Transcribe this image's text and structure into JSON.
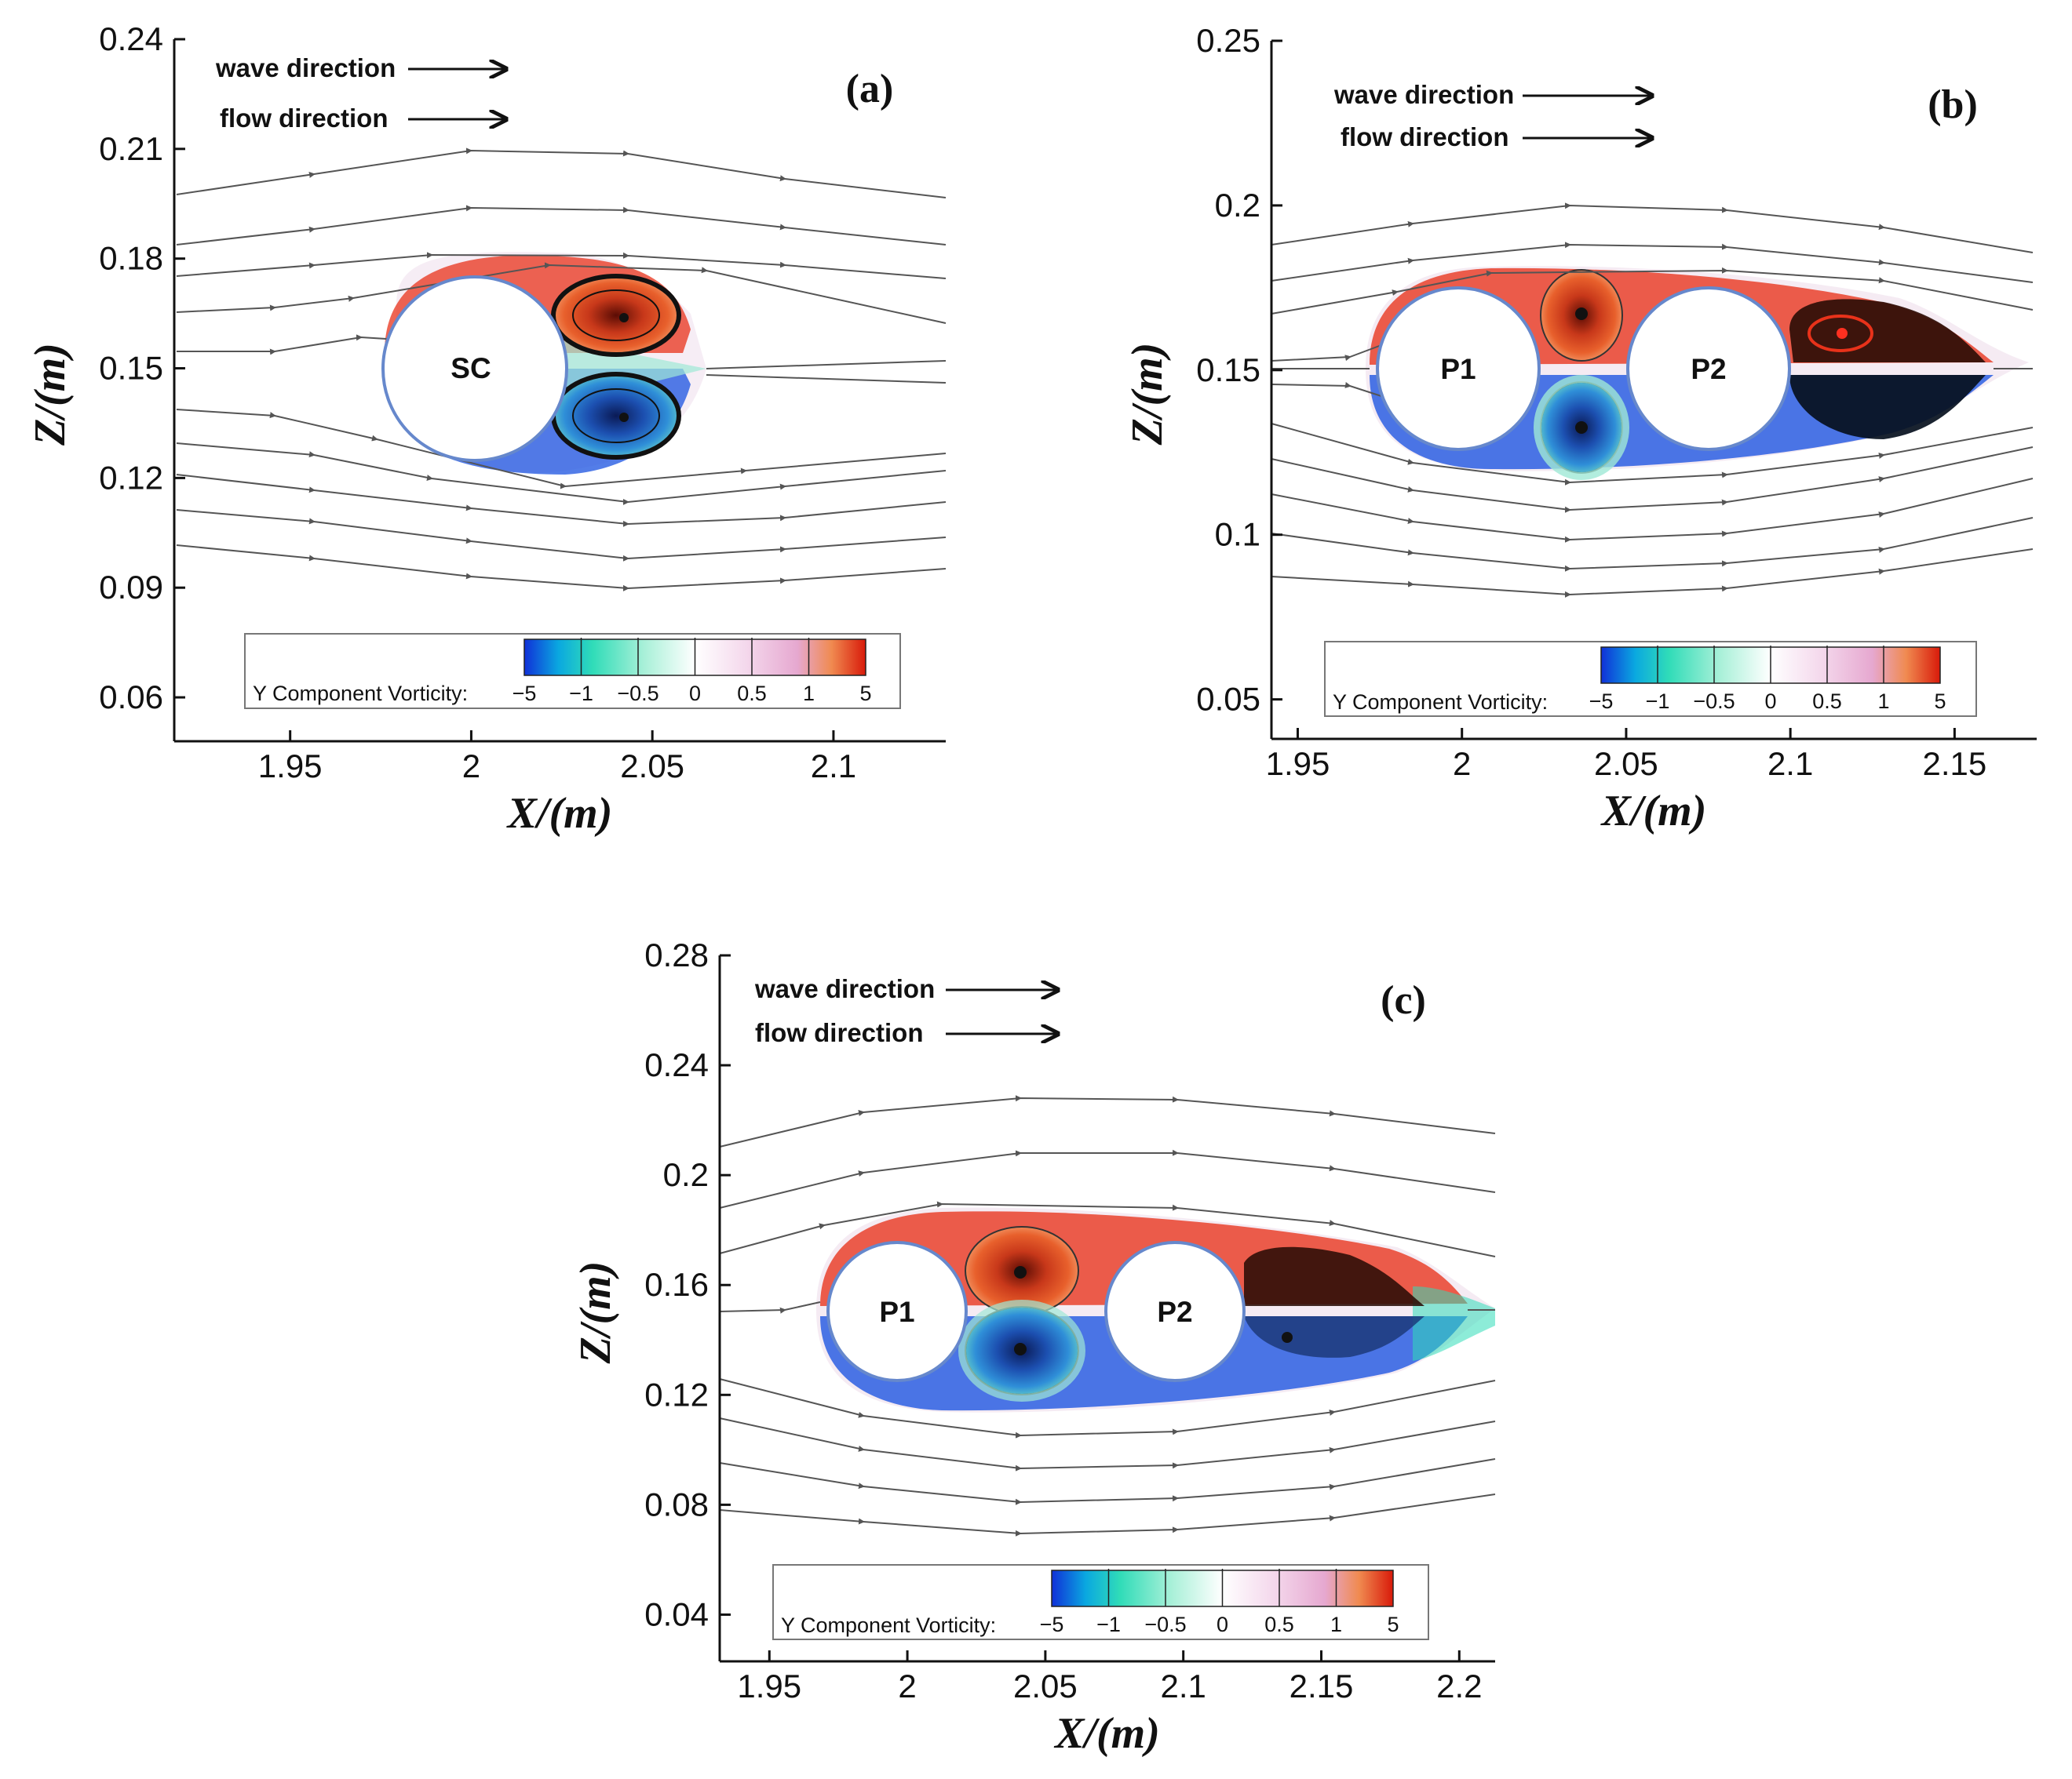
{
  "chart_data": [
    {
      "type": "contour",
      "panel": "(a)",
      "title": "",
      "xlabel": "X/(m)",
      "ylabel": "Z/(m)",
      "xticks": [
        1.95,
        2,
        2.05,
        2.1
      ],
      "xtick_labels": [
        "1.95",
        "2",
        "2.05",
        "2.1"
      ],
      "yticks": [
        0.06,
        0.09,
        0.12,
        0.15,
        0.18,
        0.21,
        0.24
      ],
      "ytick_labels": [
        "0.06",
        "0.09",
        "0.12",
        "0.15",
        "0.18",
        "0.21",
        "0.24"
      ],
      "xlim": [
        1.918,
        2.131
      ],
      "ylim": [
        0.048,
        0.24
      ],
      "annotations": [
        "wave direction",
        "flow direction"
      ],
      "cylinders": [
        {
          "label": "SC",
          "x": 2.0,
          "z": 0.15
        }
      ],
      "legend": {
        "title": "Y Component Vorticity:",
        "levels": [
          "−5",
          "−1",
          "−0.5",
          "0",
          "0.5",
          "1",
          "5"
        ]
      }
    },
    {
      "type": "contour",
      "panel": "(b)",
      "title": "",
      "xlabel": "X/(m)",
      "ylabel": "Z/(m)",
      "xticks": [
        1.95,
        2,
        2.05,
        2.1,
        2.15
      ],
      "xtick_labels": [
        "1.95",
        "2",
        "2.05",
        "2.1",
        "2.15"
      ],
      "yticks": [
        0.05,
        0.1,
        0.15,
        0.2,
        0.25
      ],
      "ytick_labels": [
        "0.05",
        "0.1",
        "0.15",
        "0.2",
        "0.25"
      ],
      "xlim": [
        1.942,
        2.175
      ],
      "ylim": [
        0.038,
        0.25
      ],
      "annotations": [
        "wave direction",
        "flow direction"
      ],
      "cylinders": [
        {
          "label": "P1",
          "x": 2.0,
          "z": 0.15
        },
        {
          "label": "P2",
          "x": 2.075,
          "z": 0.15
        }
      ],
      "legend": {
        "title": "Y Component Vorticity:",
        "levels": [
          "−5",
          "−1",
          "−0.5",
          "0",
          "0.5",
          "1",
          "5"
        ]
      }
    },
    {
      "type": "contour",
      "panel": "(c)",
      "title": "",
      "xlabel": "X/(m)",
      "ylabel": "Z/(m)",
      "xticks": [
        1.95,
        2,
        2.05,
        2.1,
        2.15,
        2.2
      ],
      "xtick_labels": [
        "1.95",
        "2",
        "2.05",
        "2.1",
        "2.15",
        "2.2"
      ],
      "yticks": [
        0.04,
        0.08,
        0.12,
        0.16,
        0.2,
        0.24,
        0.28
      ],
      "ytick_labels": [
        "0.04",
        "0.08",
        "0.12",
        "0.16",
        "0.2",
        "0.24",
        "0.28"
      ],
      "xlim": [
        1.932,
        2.213
      ],
      "ylim": [
        0.023,
        0.28
      ],
      "annotations": [
        "wave direction",
        "flow direction"
      ],
      "cylinders": [
        {
          "label": "P1",
          "x": 2.0,
          "z": 0.15
        },
        {
          "label": "P2",
          "x": 2.1,
          "z": 0.15
        }
      ],
      "legend": {
        "title": "Y Component Vorticity:",
        "levels": [
          "−5",
          "−1",
          "−0.5",
          "0",
          "0.5",
          "1",
          "5"
        ]
      }
    }
  ]
}
